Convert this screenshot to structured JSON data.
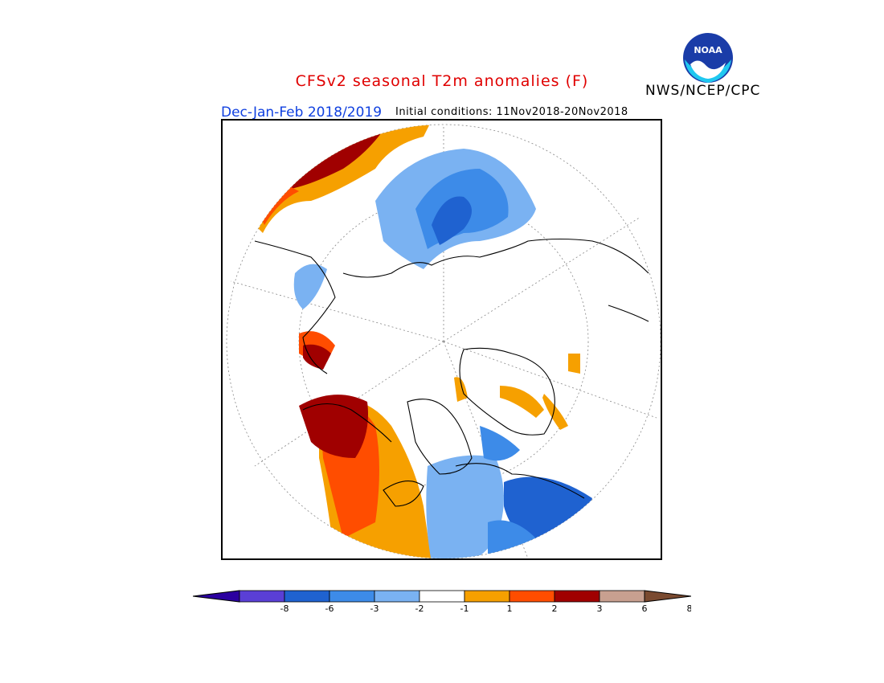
{
  "header": {
    "title": "CFSv2 seasonal T2m anomalies (F)",
    "agency": "NWS/NCEP/CPC",
    "logo_text": "NOAA",
    "season": "Dec-Jan-Feb 2018/2019",
    "initial_conditions": "Initial conditions: 11Nov2018-20Nov2018"
  },
  "map": {
    "projection": "north-polar-stereographic",
    "variable": "2m temperature anomaly",
    "units": "F"
  },
  "legend": {
    "ticks": [
      "-8",
      "-6",
      "-3",
      "-2",
      "-1",
      "1",
      "2",
      "3",
      "6",
      "8"
    ],
    "colors": [
      "#2b00a0",
      "#5a3fd6",
      "#1f62d0",
      "#3d8be8",
      "#7ab2f2",
      "#ffffff",
      "#f6a000",
      "#ff4d00",
      "#a00000",
      "#c8a090",
      "#7a4a30"
    ]
  },
  "colors": {
    "title": "#e00000",
    "season": "#1040e0"
  }
}
